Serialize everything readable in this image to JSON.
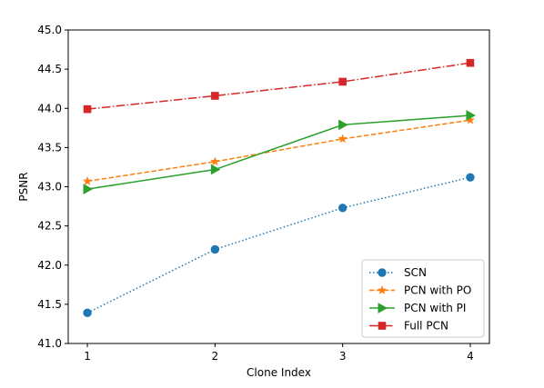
{
  "chart_data": {
    "type": "line",
    "title": "",
    "xlabel": "Clone Index",
    "ylabel": "PSNR",
    "x": [
      1,
      2,
      3,
      4
    ],
    "x_ticks": [
      1,
      2,
      3,
      4
    ],
    "xlim": [
      0.85,
      4.15
    ],
    "ylim": [
      41.0,
      45.0
    ],
    "y_ticks": [
      "41.0",
      "41.5",
      "42.0",
      "42.5",
      "43.0",
      "43.5",
      "44.0",
      "44.5",
      "45.0"
    ],
    "grid": false,
    "legend_position": "lower-right",
    "series": [
      {
        "name": "SCN",
        "values": [
          41.39,
          42.2,
          42.73,
          43.12
        ],
        "color": "#1f77b4",
        "linestyle": "dotted",
        "marker": "circle"
      },
      {
        "name": "PCN with PO",
        "values": [
          43.07,
          43.32,
          43.61,
          43.85
        ],
        "color": "#ff7f0e",
        "linestyle": "dashed",
        "marker": "star"
      },
      {
        "name": "PCN with PI",
        "values": [
          42.97,
          43.22,
          43.79,
          43.91
        ],
        "color": "#2ca02c",
        "linestyle": "solid",
        "marker": "triangle-right"
      },
      {
        "name": "Full PCN",
        "values": [
          43.99,
          44.16,
          44.34,
          44.58
        ],
        "color": "#d62728",
        "linestyle": "dashdot",
        "marker": "square"
      }
    ]
  }
}
